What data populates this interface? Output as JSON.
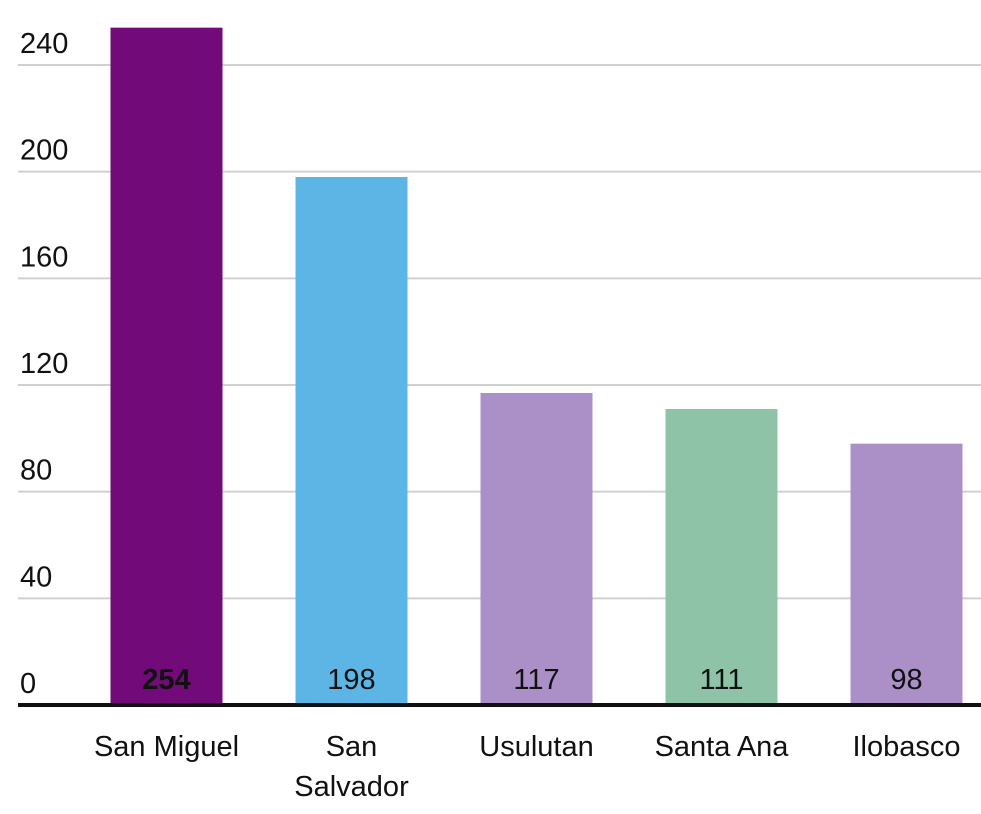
{
  "chart_data": {
    "type": "bar",
    "categories": [
      "San Miguel",
      "San Salvador",
      "Usulutan",
      "Santa Ana",
      "Ilobasco"
    ],
    "values": [
      254,
      198,
      117,
      111,
      98
    ],
    "colors": [
      "#720a7a",
      "#5db5e5",
      "#ab90c8",
      "#8ec3a8",
      "#ab90c8"
    ],
    "value_label_colors": [
      "#ffffff",
      "#111111",
      "#111111",
      "#111111",
      "#111111"
    ],
    "ylim": [
      0,
      264
    ],
    "yticks": [
      0,
      40,
      80,
      120,
      160,
      200,
      240
    ],
    "grid": true
  }
}
